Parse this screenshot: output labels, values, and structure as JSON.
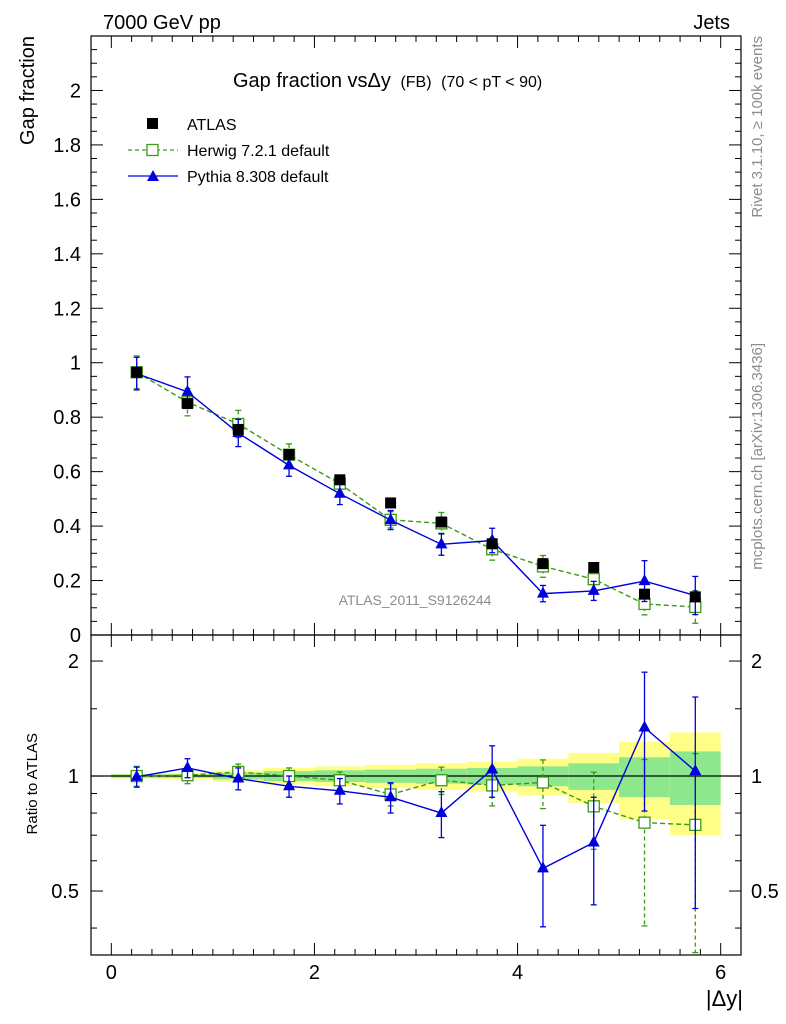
{
  "header": {
    "left": "7000 GeV pp",
    "right": "Jets"
  },
  "side_texts": {
    "rivet": "Rivet 3.1.10, ≥ 100k events",
    "mcplots": "mcplots.cern.ch [arXiv:1306.3436]"
  },
  "chart_data": [
    {
      "type": "scatter",
      "title": "Gap fraction vsΔy (FB) (70 < pT < 90)",
      "title_parts": {
        "main": "Gap fraction vsΔy",
        "tag": "(FB)",
        "range": "(70 < pT <  90)"
      },
      "ylabel": "Gap fraction",
      "xlim": [
        -0.2,
        6.2
      ],
      "ylim": [
        0,
        2.2
      ],
      "yticks": [
        "0",
        "0.2",
        "0.4",
        "0.6",
        "0.8",
        "1",
        "1.2",
        "1.4",
        "1.6",
        "1.8",
        "2"
      ],
      "watermark": "ATLAS_2011_S9126244",
      "legend_position": "top-left",
      "x": [
        0.25,
        0.75,
        1.25,
        1.75,
        2.25,
        2.75,
        3.25,
        3.75,
        4.25,
        4.75,
        5.25,
        5.75
      ],
      "series": [
        {
          "name": "ATLAS",
          "color": "#000000",
          "marker": "square-filled",
          "line": "none",
          "values": [
            0.965,
            0.85,
            0.755,
            0.663,
            0.57,
            0.485,
            0.415,
            0.335,
            0.262,
            0.248,
            0.15,
            0.14
          ]
        },
        {
          "name": "Herwig 7.2.1 default",
          "color": "#3d9917",
          "marker": "square-open",
          "line": "dashed",
          "values": [
            0.965,
            0.855,
            0.775,
            0.662,
            0.556,
            0.423,
            0.41,
            0.315,
            0.252,
            0.205,
            0.114,
            0.103
          ],
          "errors": [
            0.06,
            0.05,
            0.05,
            0.04,
            0.03,
            0.03,
            0.04,
            0.04,
            0.04,
            0.04,
            0.04,
            0.06
          ]
        },
        {
          "name": "Pythia 8.308 default",
          "color": "#0000dd",
          "marker": "triangle-filled",
          "line": "solid",
          "values": [
            0.96,
            0.893,
            0.742,
            0.623,
            0.519,
            0.422,
            0.333,
            0.347,
            0.152,
            0.162,
            0.198,
            0.145
          ],
          "errors": [
            0.06,
            0.055,
            0.05,
            0.04,
            0.04,
            0.035,
            0.04,
            0.045,
            0.03,
            0.035,
            0.075,
            0.07
          ]
        }
      ]
    },
    {
      "type": "scatter",
      "ylabel": "Ratio to ATLAS",
      "xlabel": "|Δy|",
      "xlim": [
        -0.2,
        6.2
      ],
      "ylim": [
        0.34,
        2.34
      ],
      "xticks": [
        "0",
        "2",
        "4",
        "6"
      ],
      "yticks": [
        "0.5",
        "1",
        "2"
      ],
      "x": [
        0.25,
        0.75,
        1.25,
        1.75,
        2.25,
        2.75,
        3.25,
        3.75,
        4.25,
        4.75,
        5.25,
        5.75
      ],
      "bands": {
        "inner_color": "#8de88d",
        "outer_color": "#ffff88",
        "inner_halfwidth": [
          0.01,
          0.01,
          0.02,
          0.03,
          0.035,
          0.04,
          0.045,
          0.05,
          0.06,
          0.08,
          0.12,
          0.16
        ],
        "outer_halfwidth": [
          0.015,
          0.02,
          0.035,
          0.05,
          0.06,
          0.07,
          0.08,
          0.09,
          0.11,
          0.15,
          0.23,
          0.3
        ]
      },
      "series": [
        {
          "name": "Herwig 7.2.1 default",
          "color": "#3d9917",
          "marker": "square-open",
          "line": "dashed",
          "values": [
            1.0,
            1.005,
            1.025,
            1.0,
            0.975,
            0.895,
            0.975,
            0.945,
            0.962,
            0.833,
            0.755,
            0.745
          ],
          "errors": [
            0.06,
            0.05,
            0.05,
            0.05,
            0.05,
            0.06,
            0.08,
            0.11,
            0.14,
            0.19,
            0.35,
            0.4
          ]
        },
        {
          "name": "Pythia 8.308 default",
          "color": "#0000dd",
          "marker": "triangle-filled",
          "line": "solid",
          "values": [
            0.995,
            1.05,
            0.985,
            0.94,
            0.915,
            0.88,
            0.8,
            1.04,
            0.573,
            0.67,
            1.34,
            1.03
          ],
          "errors": [
            0.06,
            0.06,
            0.065,
            0.06,
            0.07,
            0.08,
            0.11,
            0.16,
            0.17,
            0.21,
            0.53,
            0.58
          ]
        }
      ]
    }
  ]
}
